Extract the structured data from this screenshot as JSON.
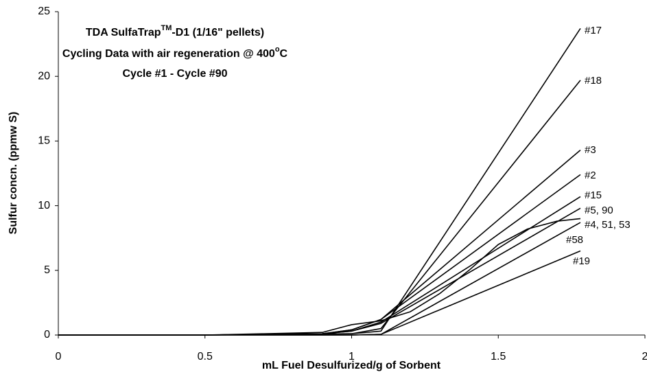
{
  "chart_data": {
    "type": "line",
    "title": [
      [
        "TDA SulfaTrap",
        "TM",
        "-D1 (1/16\" pellets)"
      ],
      [
        "Cycling Data with air regeneration @ 400",
        "o",
        "C"
      ],
      [
        "Cycle #1 - Cycle #90"
      ]
    ],
    "x_label": "mL Fuel Desulfurized/g of Sorbent",
    "y_label": "Sulfur concn. (ppmw S)",
    "xlim": [
      0,
      2
    ],
    "xticks": [
      0,
      0.5,
      1,
      1.5,
      2
    ],
    "ylim": [
      0,
      25
    ],
    "yticks": [
      0,
      5,
      10,
      15,
      20,
      25
    ],
    "grid": false,
    "series": [
      {
        "name": "#17",
        "color": "#000000",
        "x": [
          0,
          0.5,
          1.0,
          1.1,
          1.78
        ],
        "values": [
          0,
          0,
          0.1,
          0.3,
          23.7
        ]
      },
      {
        "name": "#18",
        "color": "#000000",
        "x": [
          0,
          0.5,
          1.0,
          1.1,
          1.78
        ],
        "values": [
          0,
          0,
          0.1,
          0.5,
          19.7
        ]
      },
      {
        "name": "#3",
        "color": "#000000",
        "x": [
          0,
          0.5,
          0.9,
          1.0,
          1.1,
          1.78
        ],
        "values": [
          0,
          0,
          0.1,
          0.4,
          1.2,
          14.3
        ]
      },
      {
        "name": "#2",
        "color": "#000000",
        "x": [
          0,
          0.5,
          0.9,
          1.0,
          1.1,
          1.78
        ],
        "values": [
          0,
          0,
          0.1,
          0.4,
          1.2,
          12.4
        ]
      },
      {
        "name": "#15",
        "color": "#000000",
        "x": [
          0,
          0.5,
          0.9,
          1.0,
          1.1,
          1.78
        ],
        "values": [
          0,
          0,
          0.1,
          0.3,
          1.0,
          10.7
        ]
      },
      {
        "name": "#5, 90",
        "color": "#000000",
        "x": [
          0,
          0.5,
          0.9,
          1.0,
          1.1,
          1.78
        ],
        "values": [
          0,
          0,
          0.1,
          0.3,
          0.9,
          9.8
        ]
      },
      {
        "name": "#4, 51, 53",
        "color": "#000000",
        "x": [
          0,
          0.5,
          0.9,
          1.0,
          1.1,
          1.78
        ],
        "values": [
          0,
          0,
          0,
          0,
          0.05,
          8.7
        ]
      },
      {
        "name": "#58",
        "color": "#000000",
        "x": [
          0,
          0.5,
          0.7,
          0.9,
          1.0,
          1.1,
          1.2,
          1.3,
          1.4,
          1.5,
          1.6,
          1.7,
          1.78
        ],
        "values": [
          0,
          0,
          0.1,
          0.2,
          0.8,
          1.1,
          1.8,
          3.2,
          5.0,
          7.0,
          8.2,
          8.8,
          9.0
        ]
      },
      {
        "name": "#19",
        "color": "#000000",
        "x": [
          0,
          0.5,
          0.9,
          1.0,
          1.1,
          1.78
        ],
        "values": [
          0,
          0,
          0,
          0,
          0.05,
          6.5
        ]
      }
    ]
  }
}
